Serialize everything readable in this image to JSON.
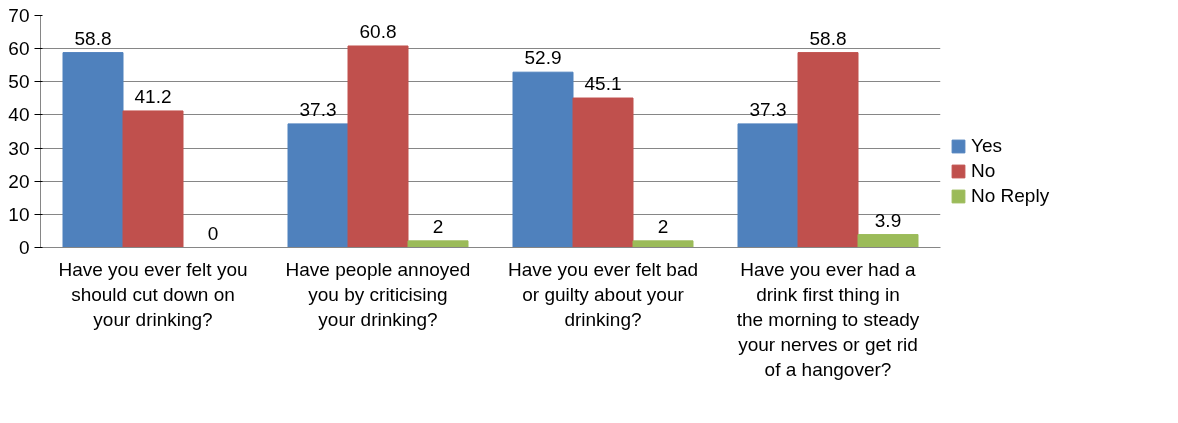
{
  "chart_data": {
    "type": "bar",
    "categories": [
      "Have you ever felt you should cut down on your drinking?",
      "Have people annoyed you by criticising your drinking?",
      "Have you ever felt bad or guilty about your drinking?",
      "Have you ever had a drink first thing in the morning to steady your nerves or get rid of a hangover?"
    ],
    "series": [
      {
        "name": "Yes",
        "color": "#4f81bd",
        "values": [
          58.8,
          37.3,
          52.9,
          37.3
        ]
      },
      {
        "name": "No",
        "color": "#c0504d",
        "values": [
          41.2,
          60.8,
          45.1,
          58.8
        ]
      },
      {
        "name": "No Reply",
        "color": "#9bbb59",
        "values": [
          0,
          2,
          2,
          3.9
        ]
      }
    ],
    "ylim": [
      0,
      70
    ],
    "yticks": [
      0,
      10,
      20,
      30,
      40,
      50,
      60,
      70
    ],
    "grid": "y",
    "legend": "right",
    "data_labels": true
  }
}
